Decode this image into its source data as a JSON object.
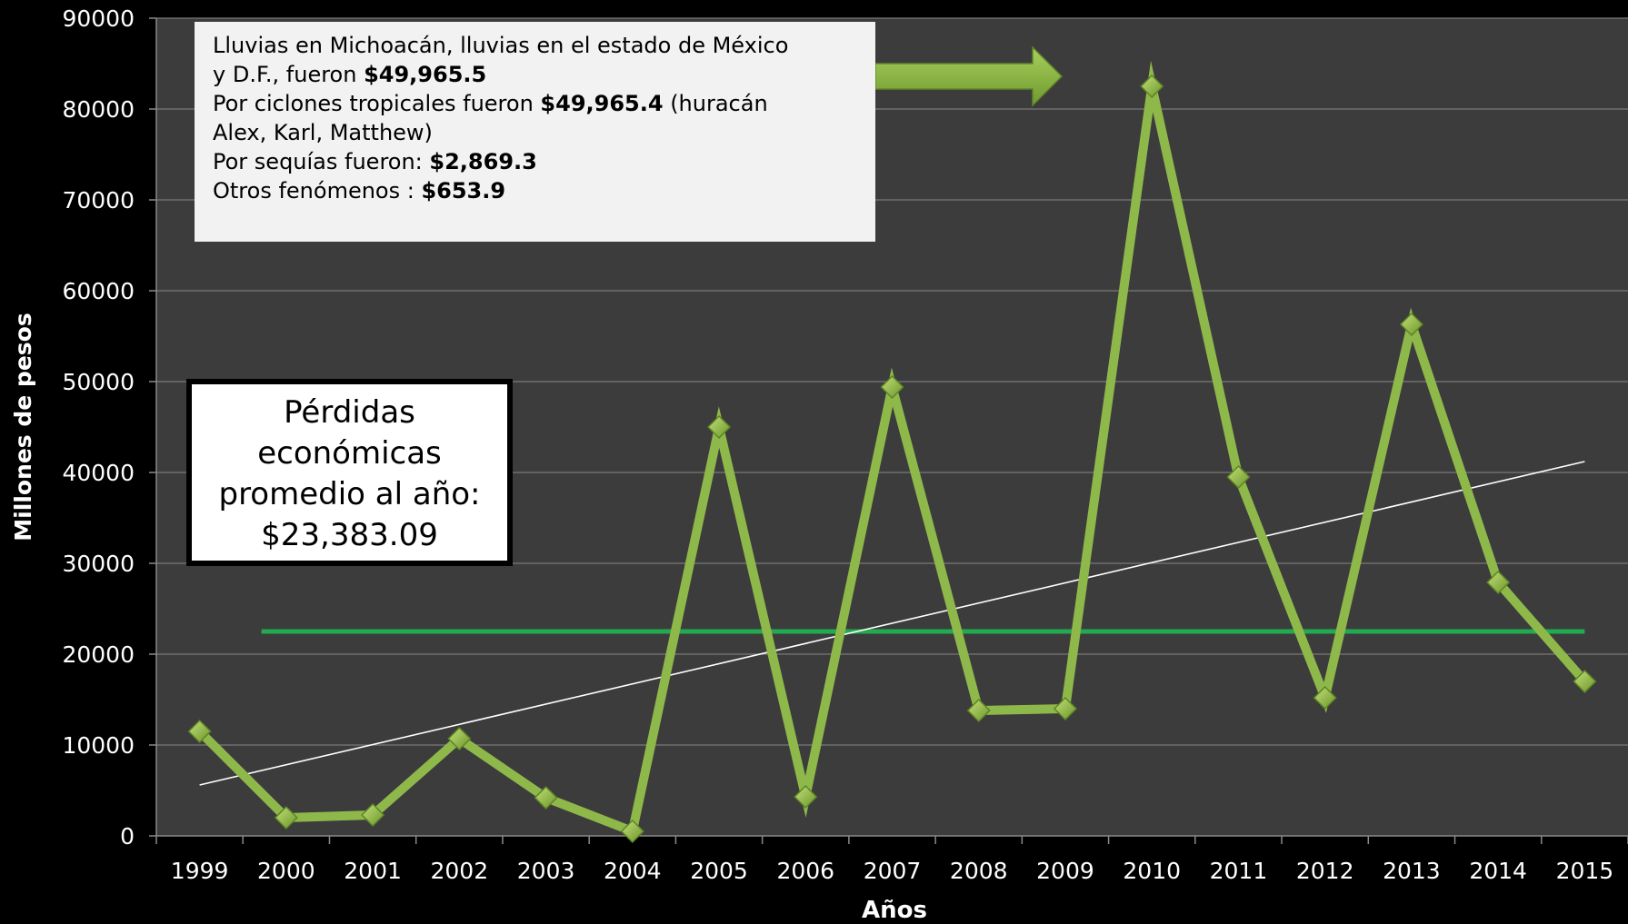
{
  "chart_data": {
    "type": "line",
    "ylabel": "Millones de pesos",
    "xlabel": "Años",
    "ylim": [
      0,
      90000
    ],
    "y_ticks": [
      "0",
      "10000",
      "20000",
      "30000",
      "40000",
      "50000",
      "60000",
      "70000",
      "80000",
      "90000"
    ],
    "categories": [
      "1999",
      "2000",
      "2001",
      "2002",
      "2003",
      "2004",
      "2005",
      "2006",
      "2007",
      "2008",
      "2009",
      "2010",
      "2011",
      "2012",
      "2013",
      "2014",
      "2015"
    ],
    "series": [
      {
        "values": [
          11500,
          2000,
          2300,
          10700,
          4200,
          500,
          45000,
          4300,
          49400,
          13800,
          14000,
          82500,
          39500,
          15200,
          56300,
          27900,
          17000
        ],
        "color": "#8fb84a",
        "marker": "diamond"
      }
    ],
    "trendline": {
      "start": 5600,
      "end": 41200,
      "color": "#ffffff"
    },
    "average_line": {
      "value": 22500,
      "color": "#22aa50"
    },
    "grid": true,
    "background": "#3c3c3c",
    "annotations": {
      "info_lines": [
        {
          "text": "Lluvias en Michoacán, lluvias en el estado de México",
          "bold": ""
        },
        {
          "text": "y D.F., fueron ",
          "bold": "$49,965.5"
        },
        {
          "text": "Por ciclones tropicales fueron ",
          "bold": "$49,965.4",
          "after": " (huracán"
        },
        {
          "text": "Alex, Karl, Matthew)",
          "bold": ""
        },
        {
          "text": "Por sequías fueron: ",
          "bold": "$2,869.3"
        },
        {
          "text": "Otros fenómenos : ",
          "bold": "$653.9"
        }
      ],
      "average_box": [
        "Pérdidas",
        "económicas",
        "promedio al año:",
        "$23,383.09"
      ]
    }
  }
}
